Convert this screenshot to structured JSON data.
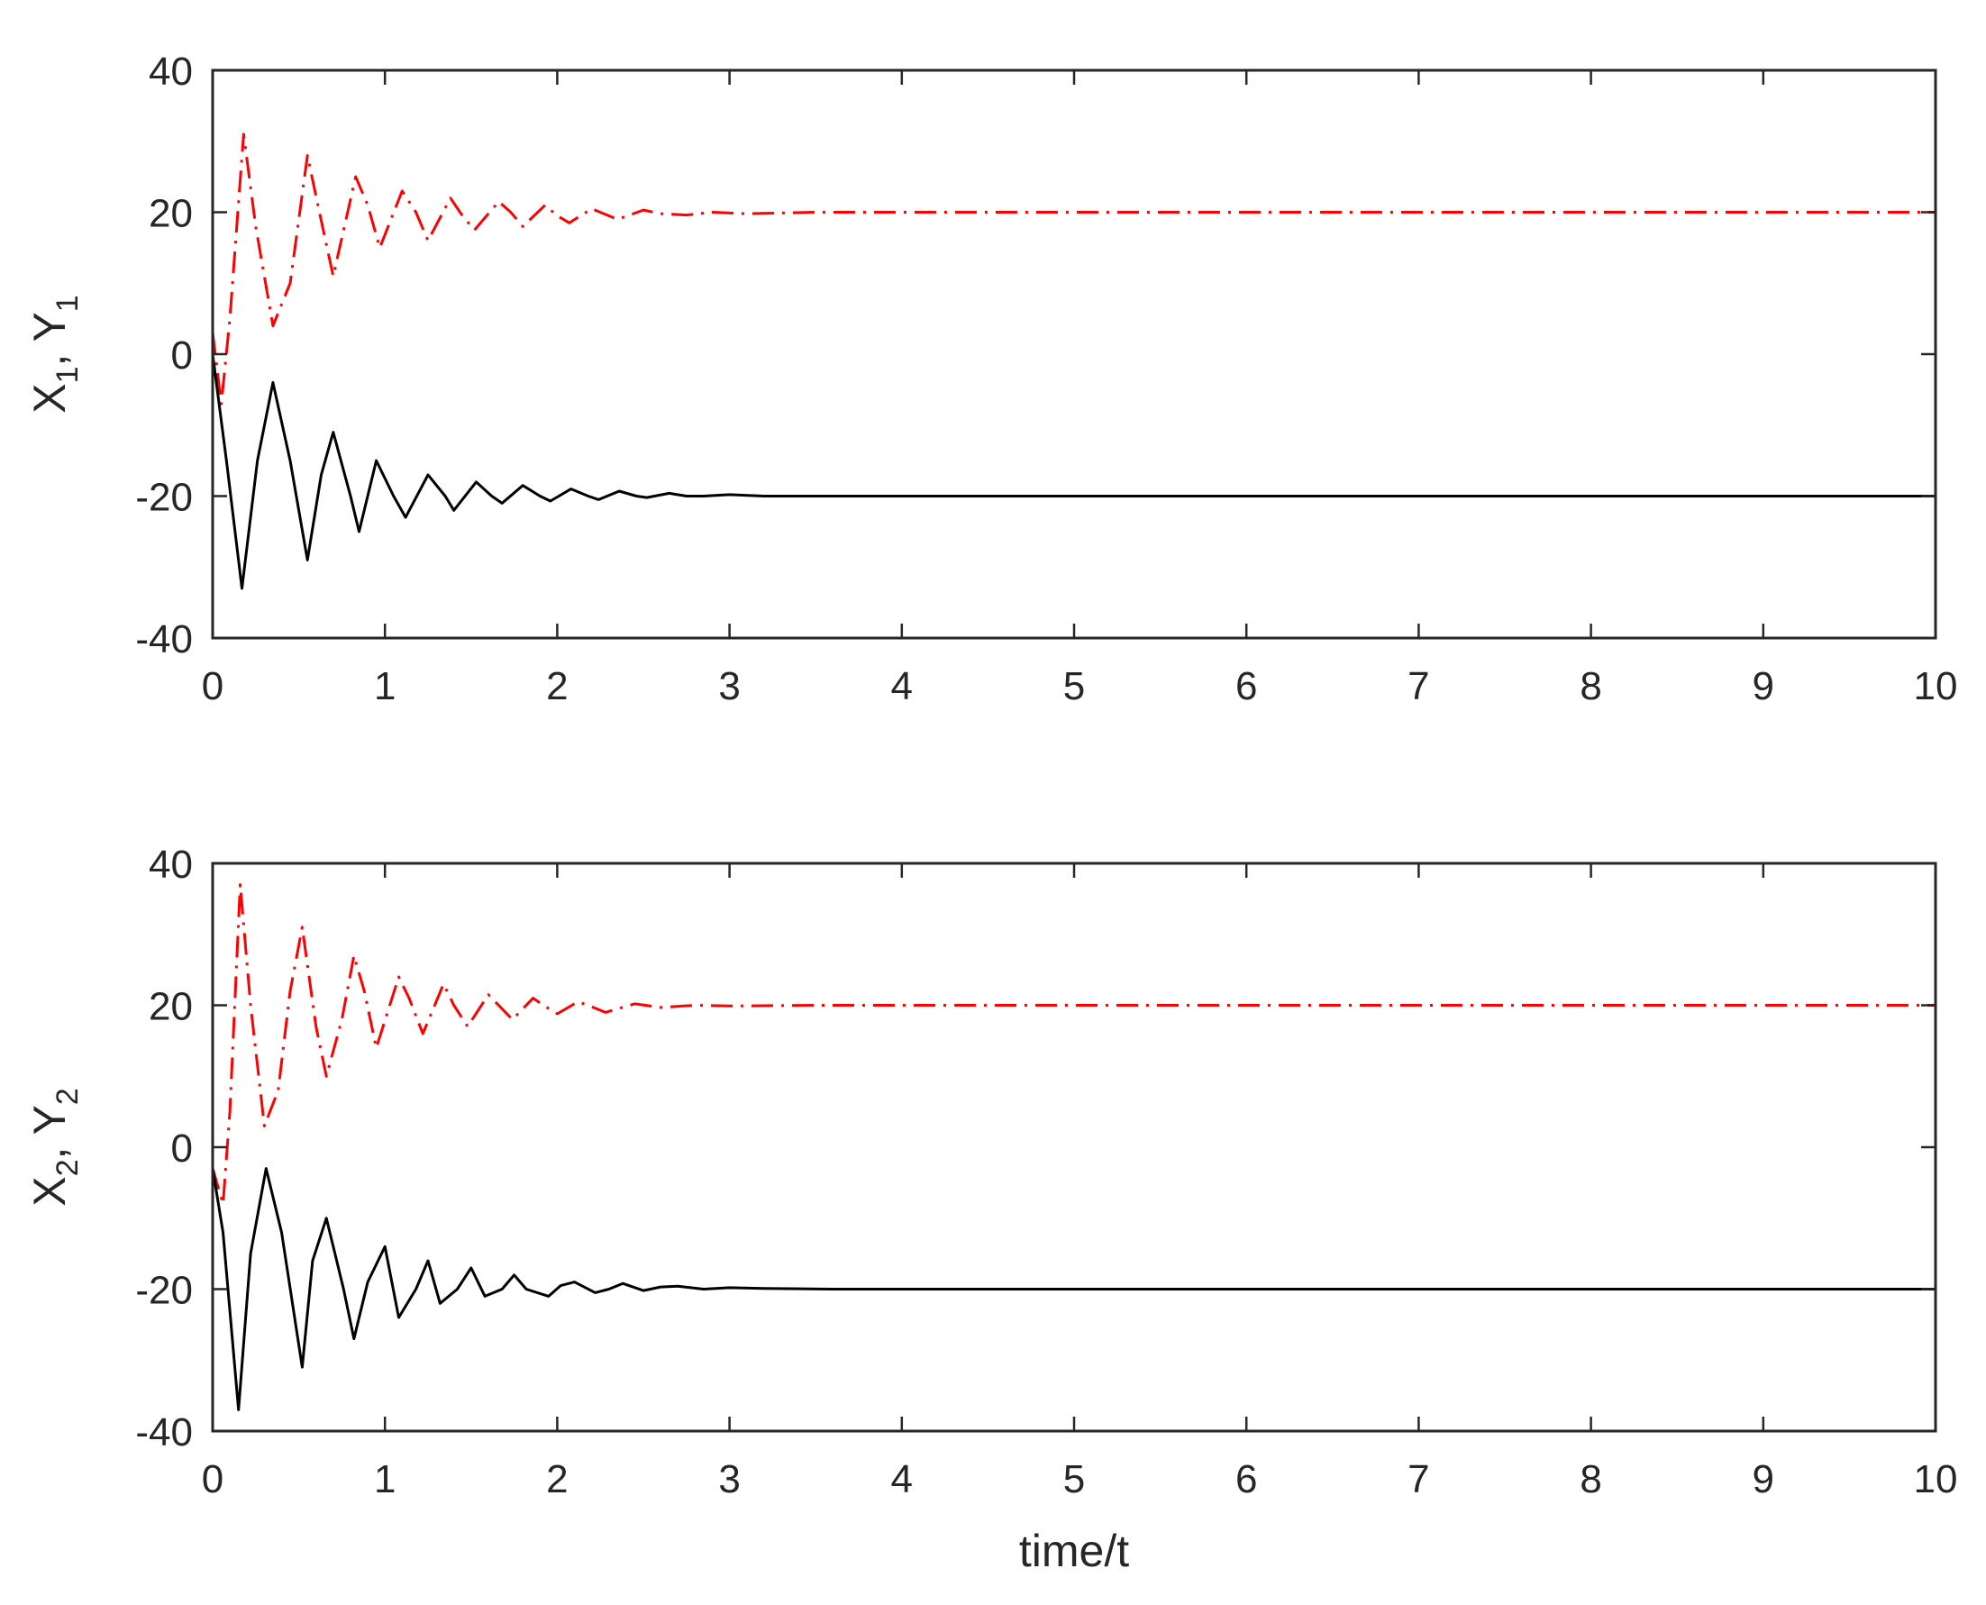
{
  "chart_data": [
    {
      "type": "line",
      "xlabel": "",
      "ylabel": {
        "parts": [
          "X",
          "1",
          ", Y",
          "1"
        ]
      },
      "xlim": [
        0,
        10
      ],
      "ylim": [
        -40,
        40
      ],
      "xticks": [
        "0",
        "1",
        "2",
        "3",
        "4",
        "5",
        "6",
        "7",
        "8",
        "9",
        "10"
      ],
      "yticks": [
        "-40",
        "-20",
        "0",
        "20",
        "40"
      ],
      "grid": false,
      "series": [
        {
          "line_color": "#ff0000",
          "line_style": "dash-dot",
          "x": [
            0.0,
            0.05,
            0.1,
            0.18,
            0.25,
            0.35,
            0.45,
            0.55,
            0.62,
            0.7,
            0.83,
            0.9,
            0.97,
            1.1,
            1.18,
            1.25,
            1.38,
            1.45,
            1.52,
            1.66,
            1.73,
            1.8,
            1.93,
            2.0,
            2.07,
            2.2,
            2.27,
            2.35,
            2.5,
            2.6,
            2.75,
            2.9,
            3.1,
            3.5,
            4.0,
            5.0,
            6.0,
            7.0,
            8.0,
            9.0,
            10.0
          ],
          "y": [
            3,
            -7,
            5,
            31,
            18,
            4,
            10,
            28,
            20,
            11,
            25,
            21,
            15,
            23,
            20,
            16,
            22,
            19.5,
            17.5,
            21.5,
            20,
            18,
            21,
            19.5,
            18.5,
            20.5,
            19.8,
            19,
            20.3,
            19.8,
            19.6,
            20,
            19.8,
            20,
            20,
            20,
            20,
            20,
            20,
            20,
            20
          ]
        },
        {
          "line_color": "#000000",
          "line_style": "solid",
          "x": [
            0.0,
            0.08,
            0.17,
            0.26,
            0.35,
            0.45,
            0.55,
            0.63,
            0.7,
            0.8,
            0.85,
            0.95,
            1.05,
            1.12,
            1.25,
            1.35,
            1.4,
            1.53,
            1.62,
            1.68,
            1.8,
            1.9,
            1.96,
            2.08,
            2.18,
            2.24,
            2.36,
            2.46,
            2.52,
            2.65,
            2.75,
            2.85,
            3.0,
            3.2,
            3.6,
            4.0,
            5.0,
            6.0,
            7.0,
            8.0,
            9.0,
            10.0
          ],
          "y": [
            0,
            -15,
            -33,
            -15,
            -4,
            -15,
            -29,
            -17,
            -11,
            -20,
            -25,
            -15,
            -20,
            -23,
            -17,
            -20,
            -22,
            -18,
            -20,
            -21,
            -18.5,
            -20,
            -20.7,
            -19,
            -20,
            -20.5,
            -19.3,
            -20,
            -20.2,
            -19.6,
            -20,
            -20,
            -19.8,
            -20,
            -20,
            -20,
            -20,
            -20,
            -20,
            -20,
            -20,
            -20
          ]
        }
      ]
    },
    {
      "type": "line",
      "xlabel": "time/t",
      "ylabel": {
        "parts": [
          "X",
          "2",
          ", Y",
          "2"
        ]
      },
      "xlim": [
        0,
        10
      ],
      "ylim": [
        -40,
        40
      ],
      "xticks": [
        "0",
        "1",
        "2",
        "3",
        "4",
        "5",
        "6",
        "7",
        "8",
        "9",
        "10"
      ],
      "yticks": [
        "-40",
        "-20",
        "0",
        "20",
        "40"
      ],
      "grid": false,
      "series": [
        {
          "line_color": "#ff0000",
          "line_style": "dash-dot",
          "x": [
            0.0,
            0.06,
            0.1,
            0.16,
            0.22,
            0.3,
            0.38,
            0.45,
            0.52,
            0.6,
            0.66,
            0.75,
            0.82,
            0.88,
            0.95,
            1.08,
            1.14,
            1.22,
            1.34,
            1.4,
            1.48,
            1.6,
            1.66,
            1.74,
            1.86,
            1.92,
            2.0,
            2.12,
            2.18,
            2.28,
            2.45,
            2.6,
            2.8,
            3.0,
            3.5,
            4.0,
            5.0,
            6.0,
            7.0,
            8.0,
            9.0,
            10.0
          ],
          "y": [
            -3,
            -8,
            5,
            37,
            20,
            3,
            8,
            22,
            31,
            17,
            10,
            18,
            27,
            22,
            14,
            24,
            21,
            16,
            23,
            20,
            17,
            21.5,
            20,
            18,
            21,
            20,
            18.8,
            20.5,
            20,
            19,
            20.2,
            19.7,
            20,
            19.9,
            20,
            20,
            20,
            20,
            20,
            20,
            20,
            20
          ]
        },
        {
          "line_color": "#000000",
          "line_style": "solid",
          "x": [
            0.0,
            0.06,
            0.15,
            0.22,
            0.31,
            0.4,
            0.52,
            0.58,
            0.66,
            0.76,
            0.82,
            0.9,
            1.0,
            1.08,
            1.18,
            1.25,
            1.32,
            1.42,
            1.5,
            1.58,
            1.68,
            1.75,
            1.82,
            1.95,
            2.02,
            2.1,
            2.22,
            2.3,
            2.38,
            2.5,
            2.6,
            2.7,
            2.85,
            3.0,
            3.2,
            3.6,
            4.0,
            5.0,
            6.0,
            7.0,
            8.0,
            9.0,
            10.0
          ],
          "y": [
            -3,
            -12,
            -37,
            -15,
            -3,
            -12,
            -31,
            -16,
            -10,
            -20,
            -27,
            -19,
            -14,
            -24,
            -20,
            -16,
            -22,
            -20,
            -17,
            -21,
            -20,
            -18,
            -20,
            -21,
            -19.5,
            -19,
            -20.5,
            -20,
            -19.2,
            -20.2,
            -19.7,
            -19.6,
            -20,
            -19.8,
            -19.9,
            -20,
            -20,
            -20,
            -20,
            -20,
            -20,
            -20,
            -20
          ]
        }
      ]
    }
  ]
}
